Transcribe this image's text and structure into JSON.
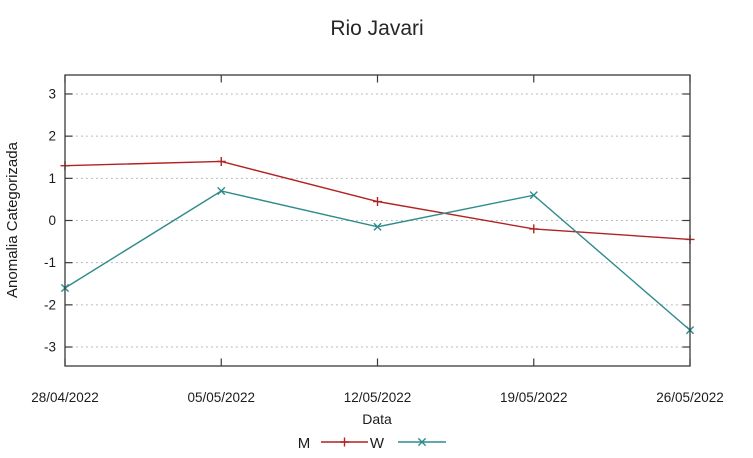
{
  "chart_data": {
    "type": "line",
    "title": "Rio Javari",
    "xlabel": "Data",
    "ylabel": "Anomalia Categorizada",
    "categories": [
      "28/04/2022",
      "05/05/2022",
      "12/05/2022",
      "19/05/2022",
      "26/05/2022"
    ],
    "series": [
      {
        "name": "M",
        "marker": "plus",
        "color": "#b22222",
        "values": [
          1.3,
          1.4,
          0.45,
          -0.2,
          -0.45
        ]
      },
      {
        "name": "W",
        "marker": "cross",
        "color": "#2e8b8b",
        "values": [
          -1.6,
          0.7,
          -0.15,
          0.6,
          -2.6
        ]
      }
    ],
    "yticks": [
      -3,
      -2,
      -1,
      0,
      1,
      2,
      3
    ],
    "ylim": [
      -3.45,
      3.45
    ],
    "grid": "horizontal-dotted",
    "grid_color": "#b5b5b5",
    "border_color": "#3a3a3a",
    "legend_position": "bottom-center"
  }
}
